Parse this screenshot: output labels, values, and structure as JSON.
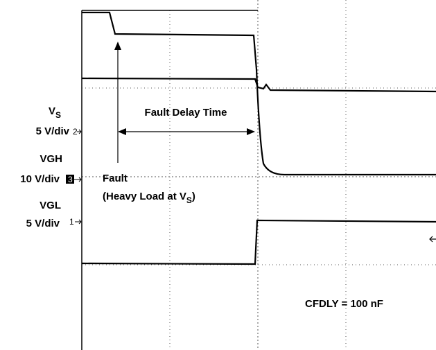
{
  "channels": [
    {
      "name": {
        "main": "V",
        "sub": "S"
      },
      "scale": "5 V/div",
      "marker": "2"
    },
    {
      "name": {
        "main": "VGH"
      },
      "scale": "10 V/div",
      "marker": "3"
    },
    {
      "name": {
        "main": "VGL"
      },
      "scale": "5 V/div",
      "marker": "1"
    }
  ],
  "annotations": {
    "delay": "Fault Delay Time",
    "fault": "Fault",
    "fault_detail": {
      "main": "(Heavy Load at V",
      "sub": "S",
      "end": ")"
    },
    "capacitor": "CFDLY = 100 nF"
  }
}
